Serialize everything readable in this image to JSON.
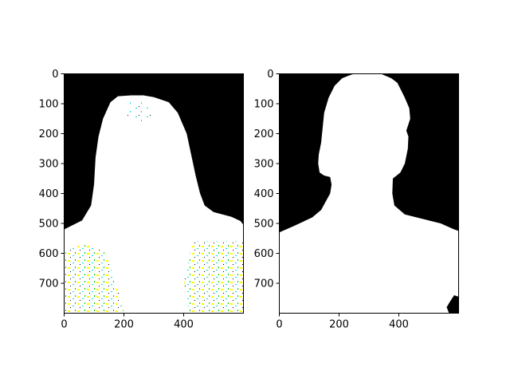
{
  "figure": {
    "background": "#ffffff"
  },
  "chart_data": [
    {
      "type": "image",
      "title": "",
      "xlabel": "",
      "ylabel": "",
      "image_width": 600,
      "image_height": 800,
      "xlim": [
        0,
        600
      ],
      "ylim": [
        800,
        0
      ],
      "xticks": [
        0,
        200,
        400
      ],
      "yticks": [
        0,
        100,
        200,
        300,
        400,
        500,
        600,
        700
      ],
      "content": "masked photo of a person (white foreground with speckled cyan/yellow/green noise) on black background",
      "background_color": "#000000",
      "foreground_color": "#ffffff",
      "noise_colors": [
        "#00e0e0",
        "#ffff00",
        "#00c800",
        "#000000"
      ]
    },
    {
      "type": "image",
      "title": "",
      "xlabel": "",
      "ylabel": "",
      "image_width": 600,
      "image_height": 800,
      "xlim": [
        0,
        600
      ],
      "ylim": [
        800,
        0
      ],
      "xticks": [
        0,
        200,
        400
      ],
      "yticks": [
        0,
        100,
        200,
        300,
        400,
        500,
        600,
        700
      ],
      "content": "binary segmentation mask of a person silhouette (white) on black background",
      "background_color": "#000000",
      "foreground_color": "#ffffff"
    }
  ]
}
